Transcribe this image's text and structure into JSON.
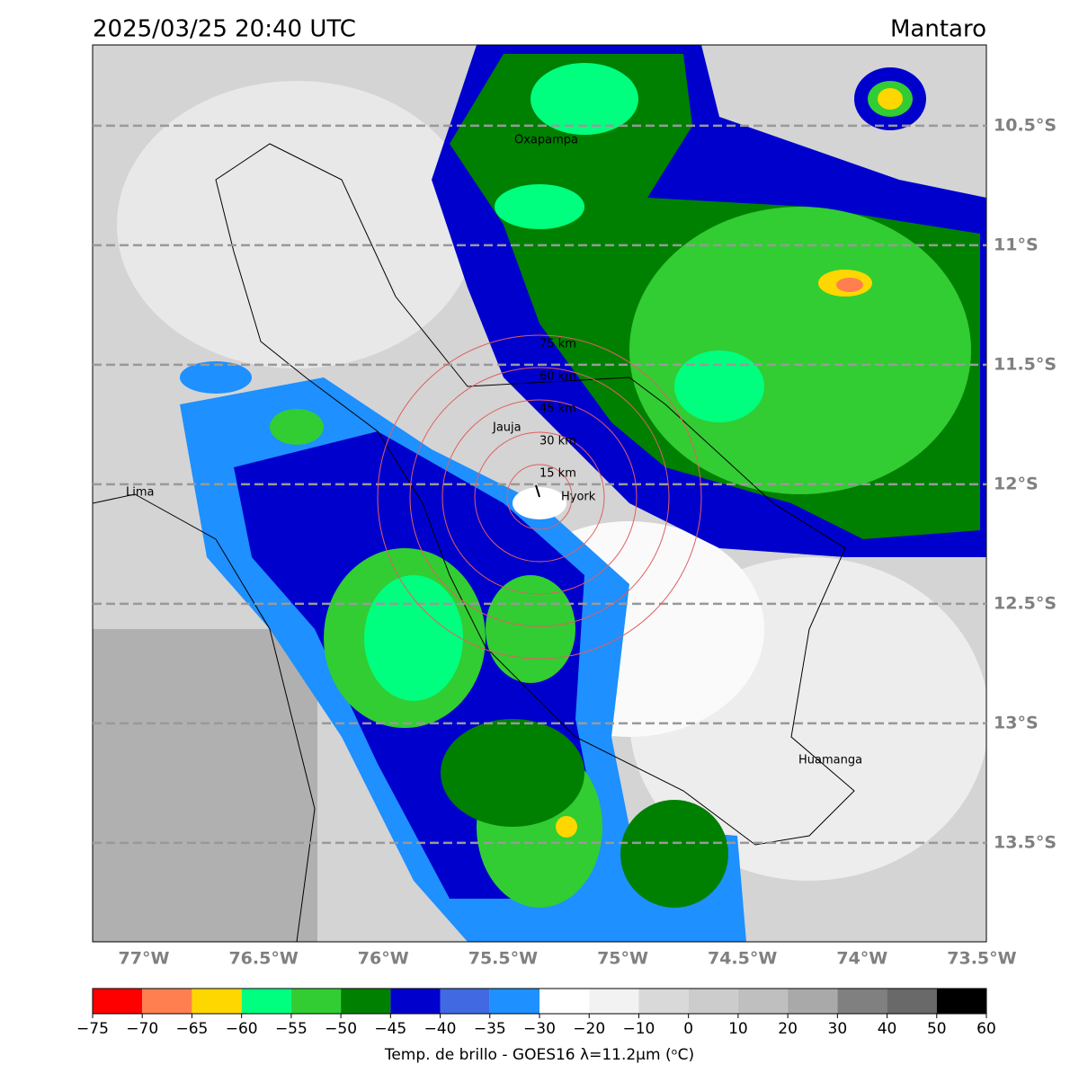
{
  "map": {
    "title": "2025/03/25 20:40 UTC",
    "region": "Mantaro",
    "xlim": [
      -77.214,
      -73.481
    ],
    "ylim": [
      -13.914,
      -10.162
    ],
    "xticks": [
      {
        "value": -77,
        "label": "77°W"
      },
      {
        "value": -76.5,
        "label": "76.5°W"
      },
      {
        "value": -76,
        "label": "76°W"
      },
      {
        "value": -75.5,
        "label": "75.5°W"
      },
      {
        "value": -75,
        "label": "75°W"
      },
      {
        "value": -74.5,
        "label": "74.5°W"
      },
      {
        "value": -74,
        "label": "74°W"
      },
      {
        "value": -73.5,
        "label": "73.5°W"
      }
    ],
    "yticks": [
      {
        "value": -10.5,
        "label": "10.5°S"
      },
      {
        "value": -11,
        "label": "11°S"
      },
      {
        "value": -11.5,
        "label": "11.5°S"
      },
      {
        "value": -12,
        "label": "12°S"
      },
      {
        "value": -12.5,
        "label": "12.5°S"
      },
      {
        "value": -13,
        "label": "13°S"
      },
      {
        "value": -13.5,
        "label": "13.5°S"
      }
    ],
    "grid": true,
    "rings": [
      {
        "value": 15,
        "label": "15 km"
      },
      {
        "value": 30,
        "label": "30 km"
      },
      {
        "value": 45,
        "label": "45 km"
      },
      {
        "value": 60,
        "label": "60 km"
      },
      {
        "value": 75,
        "label": "75 km"
      }
    ],
    "places": [
      "Oxapampa",
      "Jauja",
      "Lima",
      "Hyork",
      "Huamanga"
    ]
  },
  "colorbar": {
    "label": "Temp. de brillo - GOES16 λ=11.2μm (ᵒC)",
    "ticks": [
      {
        "value": -75,
        "label": "−75"
      },
      {
        "value": -70,
        "label": "−70"
      },
      {
        "value": -65,
        "label": "−65"
      },
      {
        "value": -60,
        "label": "−60"
      },
      {
        "value": -55,
        "label": "−55"
      },
      {
        "value": -50,
        "label": "−50"
      },
      {
        "value": -45,
        "label": "−45"
      },
      {
        "value": -40,
        "label": "−40"
      },
      {
        "value": -35,
        "label": "−35"
      },
      {
        "value": -30,
        "label": "−30"
      },
      {
        "value": -20,
        "label": "−20"
      },
      {
        "value": -10,
        "label": "−10"
      },
      0,
      10,
      20,
      30,
      40,
      50,
      60
    ],
    "colors": [
      "#ff0000",
      "#ff7f50",
      "#ffd700",
      "#00ff7f",
      "#32cd32",
      "#008000",
      "#0000cd",
      "#4169e1",
      "#1e90ff",
      "#ffffff",
      "#f2f2f2",
      "#d9d9d9",
      "#cccccc",
      "#bfbfbf",
      "#a9a9a9",
      "#808080",
      "#696969",
      "#000000"
    ]
  }
}
